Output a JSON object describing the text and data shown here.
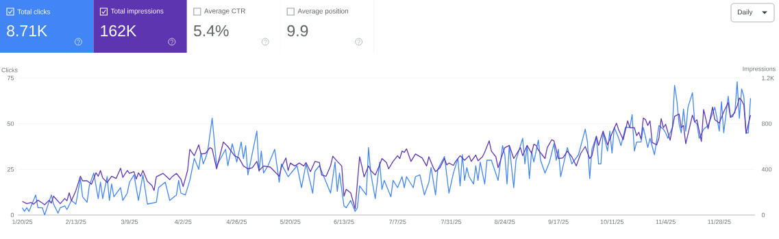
{
  "chart_data": [
    {
      "type": "other",
      "annotations": [
        "Total clicks",
        "8.71K",
        "Total impressions",
        "162K",
        "Average CTR",
        "5.4%",
        "Average position",
        "9.9",
        "Daily"
      ],
      "colors": [
        "#4285f4",
        "#5e35b1",
        "#ffffff",
        "#ffffff"
      ]
    },
    {
      "type": "line",
      "ylabel": "Clicks",
      "y2label": "Impressions",
      "grid": "y",
      "xlim": [
        "2025-01-18",
        "2025-12-14"
      ],
      "xticks": [
        {
          "value": "2025-01-20",
          "label": "1/20/25"
        },
        {
          "value": "2025-02-13",
          "label": "2/13/25"
        },
        {
          "value": "2025-03-09",
          "label": "3/9/25"
        },
        {
          "value": "2025-04-02",
          "label": "4/2/25"
        },
        {
          "value": "2025-04-26",
          "label": "4/26/25"
        },
        {
          "value": "2025-05-20",
          "label": "5/20/25"
        },
        {
          "value": "2025-06-13",
          "label": "6/13/25"
        },
        {
          "value": "2025-07-07",
          "label": "7/7/25"
        },
        {
          "value": "2025-07-31",
          "label": "7/31/25"
        },
        {
          "value": "2025-08-24",
          "label": "8/24/25"
        },
        {
          "value": "2025-09-17",
          "label": "9/17/25"
        },
        {
          "value": "2025-10-11",
          "label": "10/11/25"
        },
        {
          "value": "2025-11-04",
          "label": "11/4/25"
        },
        {
          "value": "2025-11-28",
          "label": "11/28/25"
        }
      ],
      "ylim": [
        0,
        75
      ],
      "yticks": [
        0,
        25,
        50,
        75
      ],
      "y2lim": [
        0,
        1200
      ],
      "y2ticks": [
        0,
        400,
        800,
        {
          "value": 1200,
          "label": "1.2K"
        }
      ],
      "series": [
        {
          "color": "#4285f4",
          "x": [
            "2025-01-20",
            "2025-01-21",
            "2025-01-22",
            "2025-01-23",
            "2025-01-26",
            "2025-01-27",
            "2025-01-29",
            "2025-01-30",
            "2025-02-02",
            "2025-02-03",
            "2025-02-05",
            "2025-02-06",
            "2025-02-08",
            "2025-02-09",
            "2025-02-11",
            "2025-02-13",
            "2025-02-15",
            "2025-02-16",
            "2025-02-18",
            "2025-02-19",
            "2025-02-21",
            "2025-02-23",
            "2025-02-24",
            "2025-02-25",
            "2025-02-27",
            "2025-02-28",
            "2025-03-01",
            "2025-03-02",
            "2025-03-05",
            "2025-03-06",
            "2025-03-08",
            "2025-03-09",
            "2025-03-11",
            "2025-03-13",
            "2025-03-15",
            "2025-03-17",
            "2025-03-21",
            "2025-03-22",
            "2025-03-25",
            "2025-03-27",
            "2025-03-30",
            "2025-03-31",
            "2025-04-01",
            "2025-04-03",
            "2025-04-05",
            "2025-04-07",
            "2025-04-09",
            "2025-04-10",
            "2025-04-11",
            "2025-04-12",
            "2025-04-13",
            "2025-04-15",
            "2025-04-17",
            "2025-04-21",
            "2025-04-22",
            "2025-04-24",
            "2025-04-26",
            "2025-04-28",
            "2025-04-29",
            "2025-04-30",
            "2025-05-01",
            "2025-05-05",
            "2025-05-06",
            "2025-05-07",
            "2025-05-08",
            "2025-05-10",
            "2025-05-13",
            "2025-05-15",
            "2025-05-16",
            "2025-05-19",
            "2025-05-23",
            "2025-05-25",
            "2025-05-27",
            "2025-05-30",
            "2025-05-31",
            "2025-06-02",
            "2025-06-05",
            "2025-06-07",
            "2025-06-09",
            "2025-06-10",
            "2025-06-11",
            "2025-06-13",
            "2025-06-14",
            "2025-06-16",
            "2025-06-18",
            "2025-06-19",
            "2025-06-20",
            "2025-06-23",
            "2025-06-24",
            "2025-06-25",
            "2025-06-27",
            "2025-06-29",
            "2025-06-30",
            "2025-07-01",
            "2025-07-04",
            "2025-07-05",
            "2025-07-07",
            "2025-07-09",
            "2025-07-10",
            "2025-07-11",
            "2025-07-14",
            "2025-07-15",
            "2025-07-17",
            "2025-07-19",
            "2025-07-21",
            "2025-07-22",
            "2025-07-24",
            "2025-07-25",
            "2025-07-28",
            "2025-07-30",
            "2025-08-01",
            "2025-08-03",
            "2025-08-04",
            "2025-08-05",
            "2025-08-06",
            "2025-08-07",
            "2025-08-08",
            "2025-08-10",
            "2025-08-11",
            "2025-08-12",
            "2025-08-13",
            "2025-08-15",
            "2025-08-16",
            "2025-08-18",
            "2025-08-21",
            "2025-08-23",
            "2025-08-24",
            "2025-08-25",
            "2025-08-26",
            "2025-08-28",
            "2025-08-29",
            "2025-09-01",
            "2025-09-02",
            "2025-09-03",
            "2025-09-04",
            "2025-09-05",
            "2025-09-06",
            "2025-09-08",
            "2025-09-09",
            "2025-09-11",
            "2025-09-13",
            "2025-09-15",
            "2025-09-16",
            "2025-09-17",
            "2025-09-18",
            "2025-09-21",
            "2025-09-23",
            "2025-09-26",
            "2025-09-29",
            "2025-09-30",
            "2025-10-01",
            "2025-10-02",
            "2025-10-04",
            "2025-10-05",
            "2025-10-06",
            "2025-10-07",
            "2025-10-09",
            "2025-10-10",
            "2025-10-11",
            "2025-10-12",
            "2025-10-14",
            "2025-10-15",
            "2025-10-17",
            "2025-10-19",
            "2025-10-20",
            "2025-10-21",
            "2025-10-22",
            "2025-10-24",
            "2025-10-25",
            "2025-10-27",
            "2025-10-28",
            "2025-10-30",
            "2025-10-31",
            "2025-11-01",
            "2025-11-03",
            "2025-11-04",
            "2025-11-05",
            "2025-11-07",
            "2025-11-08",
            "2025-11-09",
            "2025-11-10",
            "2025-11-11",
            "2025-11-12",
            "2025-11-13",
            "2025-11-14",
            "2025-11-16",
            "2025-11-17",
            "2025-11-18",
            "2025-11-19",
            "2025-11-21",
            "2025-11-23",
            "2025-11-26",
            "2025-11-27",
            "2025-11-28",
            "2025-11-29",
            "2025-11-30",
            "2025-12-02",
            "2025-12-03",
            "2025-12-05",
            "2025-12-06",
            "2025-12-07",
            "2025-12-08",
            "2025-12-09",
            "2025-12-10",
            "2025-12-11",
            "2025-12-12"
          ],
          "values": [
            4,
            2,
            4,
            2,
            11,
            4,
            4,
            0,
            11,
            6,
            1,
            4,
            5,
            3,
            8,
            6,
            20,
            10,
            7,
            16,
            23,
            9,
            18,
            9,
            21,
            8,
            17,
            10,
            15,
            8,
            12,
            18,
            22,
            8,
            22,
            6,
            7,
            15,
            18,
            8,
            11,
            19,
            12,
            11,
            19,
            31,
            25,
            34,
            28,
            31,
            35,
            53,
            27,
            36,
            27,
            39,
            29,
            40,
            31,
            38,
            22,
            46,
            24,
            35,
            23,
            27,
            36,
            18,
            28,
            21,
            27,
            15,
            28,
            12,
            24,
            27,
            18,
            12,
            29,
            13,
            23,
            5,
            4,
            8,
            2,
            4,
            16,
            11,
            37,
            23,
            9,
            29,
            14,
            19,
            10,
            19,
            15,
            21,
            15,
            21,
            15,
            21,
            22,
            11,
            18,
            26,
            11,
            25,
            32,
            12,
            23,
            31,
            16,
            33,
            19,
            26,
            21,
            17,
            27,
            19,
            29,
            17,
            30,
            30,
            19,
            38,
            33,
            17,
            38,
            15,
            30,
            42,
            28,
            38,
            20,
            35,
            29,
            41,
            30,
            23,
            29,
            39,
            30,
            36,
            21,
            37,
            28,
            33,
            47,
            40,
            20,
            36,
            43,
            28,
            28,
            45,
            35,
            46,
            34,
            48,
            42,
            38,
            48,
            48,
            55,
            35,
            40,
            40,
            48,
            37,
            42,
            33,
            41,
            49,
            47,
            45,
            42,
            48,
            71,
            63,
            50,
            45,
            58,
            46,
            59,
            67,
            51,
            50,
            42,
            47,
            49,
            59,
            53,
            46,
            62,
            45,
            65,
            54,
            56,
            73,
            53,
            69,
            65,
            45,
            45,
            64
          ]
        },
        {
          "color": "#5e35b1",
          "axis": "y2",
          "x": [
            "2025-01-20",
            "2025-01-22",
            "2025-01-24",
            "2025-01-25",
            "2025-01-27",
            "2025-01-29",
            "2025-01-30",
            "2025-02-01",
            "2025-02-02",
            "2025-02-03",
            "2025-02-06",
            "2025-02-08",
            "2025-02-09",
            "2025-02-10",
            "2025-02-11",
            "2025-02-13",
            "2025-02-15",
            "2025-02-16",
            "2025-02-18",
            "2025-02-20",
            "2025-02-22",
            "2025-02-23",
            "2025-02-24",
            "2025-02-25",
            "2025-02-27",
            "2025-03-01",
            "2025-03-03",
            "2025-03-05",
            "2025-03-06",
            "2025-03-08",
            "2025-03-09",
            "2025-03-11",
            "2025-03-12",
            "2025-03-13",
            "2025-03-14",
            "2025-03-15",
            "2025-03-17",
            "2025-03-19",
            "2025-03-20",
            "2025-03-21",
            "2025-03-23",
            "2025-03-24",
            "2025-03-27",
            "2025-03-28",
            "2025-03-30",
            "2025-04-01",
            "2025-04-02",
            "2025-04-04",
            "2025-04-05",
            "2025-04-07",
            "2025-04-09",
            "2025-04-10",
            "2025-04-12",
            "2025-04-14",
            "2025-04-15",
            "2025-04-17",
            "2025-04-20",
            "2025-04-22",
            "2025-04-25",
            "2025-04-27",
            "2025-04-29",
            "2025-05-01",
            "2025-05-03",
            "2025-05-05",
            "2025-05-06",
            "2025-05-08",
            "2025-05-11",
            "2025-05-15",
            "2025-05-16",
            "2025-05-18",
            "2025-05-19",
            "2025-05-20",
            "2025-05-22",
            "2025-05-24",
            "2025-05-26",
            "2025-05-27",
            "2025-05-29",
            "2025-05-31",
            "2025-06-02",
            "2025-06-03",
            "2025-06-05",
            "2025-06-07",
            "2025-06-08",
            "2025-06-10",
            "2025-06-12",
            "2025-06-13",
            "2025-06-14",
            "2025-06-16",
            "2025-06-18",
            "2025-06-20",
            "2025-06-21",
            "2025-06-22",
            "2025-06-24",
            "2025-06-25",
            "2025-06-27",
            "2025-06-29",
            "2025-06-30",
            "2025-07-02",
            "2025-07-03",
            "2025-07-05",
            "2025-07-07",
            "2025-07-08",
            "2025-07-09",
            "2025-07-10",
            "2025-07-11",
            "2025-07-13",
            "2025-07-15",
            "2025-07-18",
            "2025-07-20",
            "2025-07-21",
            "2025-07-23",
            "2025-07-24",
            "2025-07-26",
            "2025-07-28",
            "2025-07-29",
            "2025-07-30",
            "2025-08-01",
            "2025-08-02",
            "2025-08-04",
            "2025-08-06",
            "2025-08-08",
            "2025-08-09",
            "2025-08-11",
            "2025-08-12",
            "2025-08-14",
            "2025-08-15",
            "2025-08-17",
            "2025-08-18",
            "2025-08-20",
            "2025-08-21",
            "2025-08-23",
            "2025-08-24",
            "2025-08-26",
            "2025-08-28",
            "2025-08-31",
            "2025-09-01",
            "2025-09-03",
            "2025-09-05",
            "2025-09-06",
            "2025-09-07",
            "2025-09-08",
            "2025-09-11",
            "2025-09-12",
            "2025-09-14",
            "2025-09-15",
            "2025-09-17",
            "2025-09-19",
            "2025-09-21",
            "2025-09-23",
            "2025-09-25",
            "2025-09-27",
            "2025-09-29",
            "2025-10-01",
            "2025-10-02",
            "2025-10-04",
            "2025-10-05",
            "2025-10-07",
            "2025-10-09",
            "2025-10-11",
            "2025-10-13",
            "2025-10-14",
            "2025-10-16",
            "2025-10-18",
            "2025-10-19",
            "2025-10-21",
            "2025-10-22",
            "2025-10-23",
            "2025-10-24",
            "2025-10-25",
            "2025-10-26",
            "2025-10-27",
            "2025-10-28",
            "2025-10-29",
            "2025-10-31",
            "2025-11-01",
            "2025-11-02",
            "2025-11-03",
            "2025-11-04",
            "2025-11-06",
            "2025-11-08",
            "2025-11-10",
            "2025-11-11",
            "2025-11-12",
            "2025-11-13",
            "2025-11-16",
            "2025-11-17",
            "2025-11-18",
            "2025-11-20",
            "2025-11-21",
            "2025-11-23",
            "2025-11-25",
            "2025-11-26",
            "2025-11-28",
            "2025-11-30",
            "2025-12-02",
            "2025-12-03",
            "2025-12-04",
            "2025-12-06",
            "2025-12-07",
            "2025-12-08",
            "2025-12-09",
            "2025-12-10",
            "2025-12-11",
            "2025-12-12"
          ],
          "values": [
            120,
            100,
            110,
            95,
            130,
            105,
            90,
            130,
            105,
            165,
            100,
            145,
            125,
            195,
            125,
            215,
            340,
            300,
            300,
            270,
            370,
            340,
            390,
            325,
            285,
            340,
            320,
            410,
            330,
            390,
            365,
            380,
            315,
            370,
            340,
            390,
            295,
            260,
            215,
            335,
            355,
            365,
            310,
            335,
            365,
            315,
            250,
            390,
            575,
            520,
            615,
            535,
            540,
            590,
            580,
            405,
            640,
            600,
            520,
            500,
            430,
            405,
            415,
            470,
            390,
            430,
            420,
            340,
            420,
            500,
            390,
            455,
            430,
            455,
            430,
            460,
            380,
            470,
            460,
            350,
            340,
            430,
            515,
            470,
            430,
            165,
            225,
            195,
            55,
            510,
            430,
            335,
            430,
            390,
            350,
            440,
            495,
            460,
            405,
            470,
            520,
            495,
            560,
            550,
            580,
            470,
            535,
            500,
            430,
            510,
            415,
            380,
            415,
            495,
            440,
            455,
            435,
            470,
            520,
            480,
            520,
            470,
            525,
            475,
            510,
            550,
            650,
            560,
            510,
            415,
            535,
            590,
            610,
            495,
            590,
            520,
            610,
            540,
            620,
            610,
            570,
            495,
            590,
            660,
            650,
            495,
            500,
            560,
            510,
            430,
            540,
            600,
            495,
            520,
            690,
            610,
            735,
            615,
            715,
            805,
            745,
            660,
            825,
            765,
            765,
            695,
            725,
            665,
            850,
            835,
            785,
            825,
            635,
            615,
            675,
            845,
            765,
            795,
            655,
            865,
            885,
            765,
            785,
            625,
            875,
            815,
            835,
            645,
            925,
            755,
            945,
            835,
            805,
            905,
            985,
            855,
            865,
            955,
            1025,
            1005,
            965,
            715,
            795,
            875
          ]
        }
      ]
    }
  ]
}
